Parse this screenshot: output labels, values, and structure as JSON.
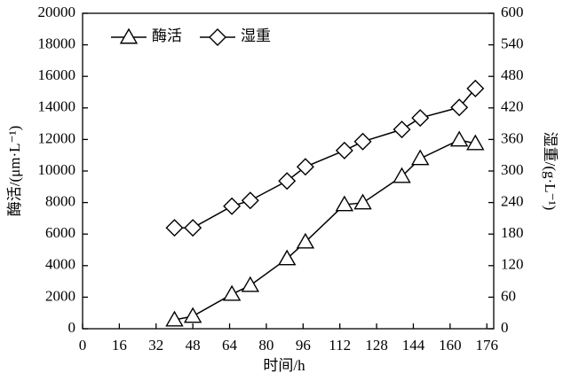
{
  "chart_data": {
    "type": "line",
    "x_label": "时间/h",
    "y_label": "酶活/(μm·L⁻¹)",
    "y2_label": "湿重/(g·L⁻¹)",
    "xlim": [
      0,
      179
    ],
    "xticks": [
      0,
      16,
      32,
      48,
      64,
      80,
      96,
      112,
      128,
      144,
      160,
      176
    ],
    "ylim": [
      0,
      20000
    ],
    "yticks": [
      0,
      2000,
      4000,
      6000,
      8000,
      10000,
      12000,
      14000,
      16000,
      18000,
      20000
    ],
    "y2lim": [
      0,
      600
    ],
    "y2ticks": [
      0,
      60,
      120,
      180,
      240,
      300,
      360,
      420,
      480,
      540,
      600
    ],
    "legend": "upper-left",
    "series": [
      {
        "name": "酶活",
        "color": "#000000",
        "marker": "triangle",
        "axis": "y",
        "x": [
          40,
          48,
          65,
          73,
          89,
          97,
          114,
          122,
          139,
          147,
          164,
          171
        ],
        "values": [
          560,
          790,
          2190,
          2750,
          4440,
          5500,
          7870,
          7980,
          9660,
          10790,
          11970,
          11740
        ]
      },
      {
        "name": "湿重",
        "color": "#000000",
        "marker": "diamond",
        "axis": "y2",
        "x": [
          40,
          48,
          65,
          73,
          89,
          97,
          114,
          122,
          139,
          147,
          164,
          171
        ],
        "values": [
          192,
          192,
          233,
          244,
          281,
          308,
          339,
          356,
          379,
          401,
          421,
          457
        ]
      }
    ]
  }
}
